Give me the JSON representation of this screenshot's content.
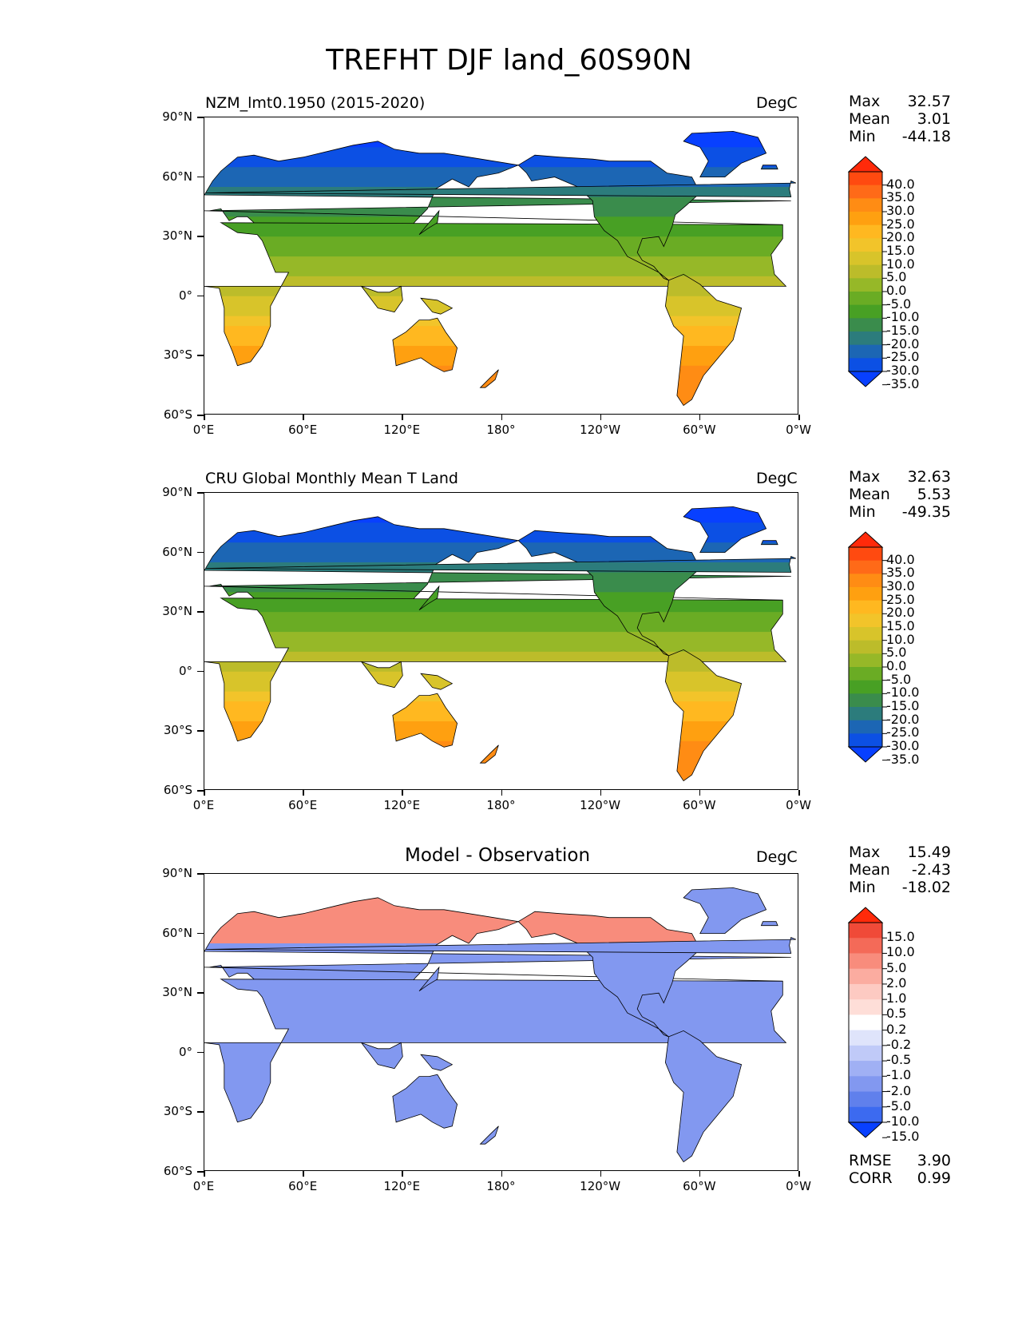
{
  "title": "TREFHT DJF land_60S90N",
  "axes": {
    "lat_labels": [
      "90°N",
      "60°N",
      "30°N",
      "0°",
      "30°S",
      "60°S"
    ],
    "lon_labels": [
      "0°E",
      "60°E",
      "120°E",
      "180°",
      "120°W",
      "60°W",
      "0°W"
    ]
  },
  "panels": [
    {
      "title": "NZM_lmt0.1950 (2015-2020)",
      "units": "DegC",
      "stats": {
        "max_label": "Max",
        "max": "32.57",
        "mean_label": "Mean",
        "mean": "3.01",
        "min_label": "Min",
        "min": "-44.18"
      },
      "colorbar": {
        "labels": [
          "40.0",
          "35.0",
          "30.0",
          "25.0",
          "20.0",
          "15.0",
          "10.0",
          "5.0",
          "0.0",
          "-5.0",
          "-10.0",
          "-15.0",
          "-20.0",
          "-25.0",
          "-30.0",
          "-35.0"
        ],
        "colors": [
          "#ff2a0a",
          "#ff4a10",
          "#ff6a18",
          "#ff8c14",
          "#ffa010",
          "#ffb820",
          "#f2c42a",
          "#d8c42a",
          "#bcbc2a",
          "#96b828",
          "#6aac24",
          "#48a024",
          "#3a8c4c",
          "#2c7c7c",
          "#1c66b4",
          "#0c50e4",
          "#0840ff"
        ]
      }
    },
    {
      "title": "CRU Global Monthly Mean T Land",
      "units": "DegC",
      "stats": {
        "max_label": "Max",
        "max": "32.63",
        "mean_label": "Mean",
        "mean": "5.53",
        "min_label": "Min",
        "min": "-49.35"
      },
      "colorbar": {
        "labels": [
          "40.0",
          "35.0",
          "30.0",
          "25.0",
          "20.0",
          "15.0",
          "10.0",
          "5.0",
          "0.0",
          "-5.0",
          "-10.0",
          "-15.0",
          "-20.0",
          "-25.0",
          "-30.0",
          "-35.0"
        ],
        "colors": [
          "#ff2a0a",
          "#ff4a10",
          "#ff6a18",
          "#ff8c14",
          "#ffa010",
          "#ffb820",
          "#f2c42a",
          "#d8c42a",
          "#bcbc2a",
          "#96b828",
          "#6aac24",
          "#48a024",
          "#3a8c4c",
          "#2c7c7c",
          "#1c66b4",
          "#0c50e4",
          "#0840ff"
        ]
      }
    },
    {
      "title": "Model - Observation",
      "units": "DegC",
      "stats": {
        "max_label": "Max",
        "max": "15.49",
        "mean_label": "Mean",
        "mean": "-2.43",
        "min_label": "Min",
        "min": "-18.02"
      },
      "colorbar": {
        "labels": [
          "15.0",
          "10.0",
          "5.0",
          "2.0",
          "1.0",
          "0.5",
          "0.2",
          "-0.2",
          "-0.5",
          "-1.0",
          "-2.0",
          "-5.0",
          "-10.0",
          "-15.0"
        ],
        "colors": [
          "#ff2a0a",
          "#f04a38",
          "#f46a58",
          "#f88c7c",
          "#fbaca0",
          "#fdcac2",
          "#feded8",
          "#ffffff",
          "#dfe4fb",
          "#c0caf8",
          "#a0b0f4",
          "#8298f0",
          "#6080ec",
          "#3c6af0",
          "#0840ff"
        ]
      },
      "error_stats": {
        "rmse_label": "RMSE",
        "rmse": "3.90",
        "corr_label": "CORR",
        "corr": "0.99"
      }
    }
  ]
}
